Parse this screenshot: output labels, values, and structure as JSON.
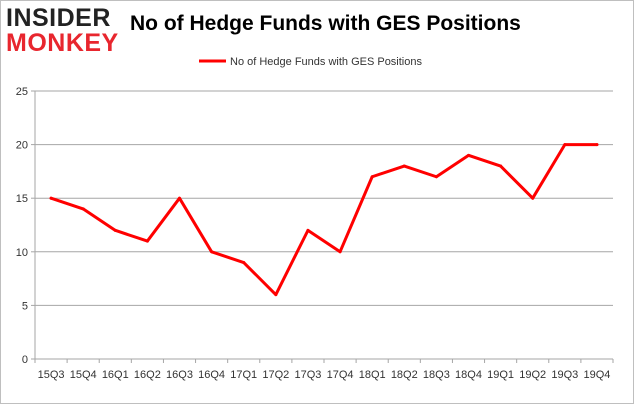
{
  "brand": {
    "logo_line1": "INSIDER",
    "logo_line2": "MONKEY"
  },
  "colors": {
    "series": "#ff0000",
    "grid": "#a6a6a6",
    "logo_red": "#e8262e"
  },
  "chart_data": {
    "type": "line",
    "title": "No of Hedge Funds with GES Positions",
    "xlabel": "",
    "ylabel": "",
    "categories": [
      "15Q3",
      "15Q4",
      "16Q1",
      "16Q2",
      "16Q3",
      "16Q4",
      "17Q1",
      "17Q2",
      "17Q3",
      "17Q4",
      "18Q1",
      "18Q2",
      "18Q3",
      "18Q4",
      "19Q1",
      "19Q2",
      "19Q3",
      "19Q4"
    ],
    "series": [
      {
        "name": "No of Hedge Funds with GES Positions",
        "values": [
          15,
          14,
          12,
          11,
          15,
          10,
          9,
          6,
          12,
          10,
          17,
          18,
          17,
          19,
          18,
          15,
          20,
          20
        ]
      }
    ],
    "ylim": [
      0,
      25
    ],
    "yticks": [
      0,
      5,
      10,
      15,
      20,
      25
    ],
    "grid": true,
    "legend": "top-center"
  }
}
